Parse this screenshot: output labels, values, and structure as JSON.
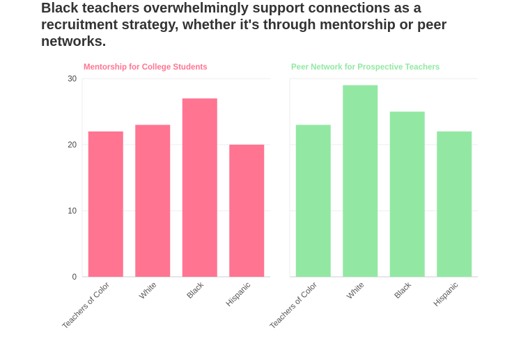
{
  "title": "Black teachers overwhelmingly support connections as a recruitment strategy, whether it's through mentorship or peer networks.",
  "colors": {
    "left": "#ff7491",
    "right": "#92e8a3",
    "grid": "#eeeeee",
    "axis": "#444444"
  },
  "chart_data": [
    {
      "type": "bar",
      "title": "Mentorship for College Students",
      "categories": [
        "Teachers of Color",
        "White",
        "Black",
        "Hispanic"
      ],
      "values": [
        22,
        23,
        27,
        20
      ],
      "xlabel": "",
      "ylabel": "",
      "ylim": [
        0,
        30
      ],
      "yticks": [
        0,
        10,
        20,
        30
      ],
      "grid": true
    },
    {
      "type": "bar",
      "title": "Peer Network for Prospective Teachers",
      "categories": [
        "Teachers of Color",
        "White",
        "Black",
        "Hispanic"
      ],
      "values": [
        23,
        29,
        25,
        22
      ],
      "xlabel": "",
      "ylabel": "",
      "ylim": [
        0,
        30
      ],
      "yticks": [
        0,
        10,
        20,
        30
      ],
      "grid": true
    }
  ]
}
